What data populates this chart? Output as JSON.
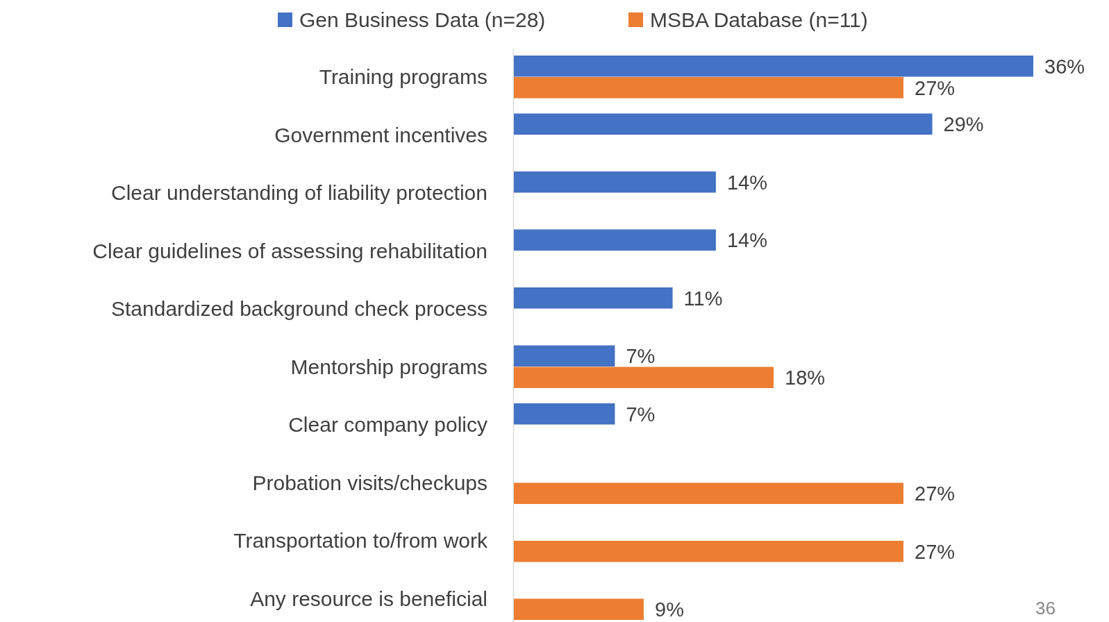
{
  "chart_data": {
    "type": "bar",
    "orientation": "horizontal",
    "legend": "top",
    "categories": [
      "Training programs",
      "Government incentives",
      "Clear understanding of liability protection",
      "Clear guidelines of assessing rehabilitation",
      "Standardized background check process",
      "Mentorship programs",
      "Clear company policy",
      "Probation visits/checkups",
      "Transportation to/from work",
      "Any resource is beneficial"
    ],
    "series": [
      {
        "name": "Gen Business Data (n=28)",
        "color": "#4472c4",
        "values": [
          36,
          29,
          14,
          14,
          11,
          7,
          7,
          null,
          null,
          null
        ],
        "value_labels": [
          "36%",
          "29%",
          "14%",
          "14%",
          "11%",
          "7%",
          "7%",
          null,
          null,
          null
        ]
      },
      {
        "name": "MSBA Database (n=11)",
        "color": "#ed7d31",
        "values": [
          27,
          null,
          null,
          null,
          null,
          18,
          null,
          27,
          27,
          9
        ],
        "value_labels": [
          "27%",
          null,
          null,
          null,
          null,
          "18%",
          null,
          "27%",
          "27%",
          "9%"
        ]
      }
    ],
    "annotations": [
      "36"
    ]
  }
}
